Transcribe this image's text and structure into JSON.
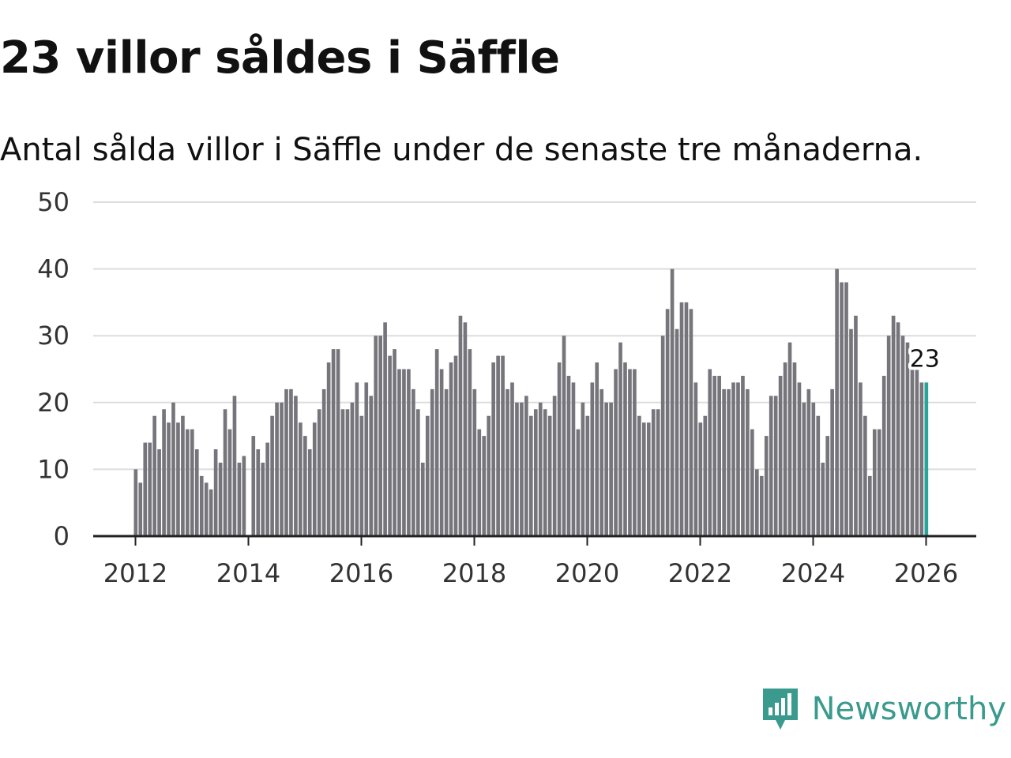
{
  "header": {
    "title": "23 villor såldes i Säffle",
    "subtitle": "Antal sålda villor i Säffle under de senaste tre månaderna."
  },
  "brand": {
    "name": "Newsworthy",
    "color": "#3a9a8e"
  },
  "colors": {
    "bar": "#76757b",
    "highlight": "#2aa39a",
    "grid": "#dddddd",
    "axis": "#222222"
  },
  "chart_data": {
    "type": "bar",
    "title": "23 villor såldes i Säffle",
    "subtitle": "Antal sålda villor i Säffle under de senaste tre månaderna.",
    "xlabel": "",
    "ylabel": "",
    "ylim": [
      0,
      50
    ],
    "yticks": [
      0,
      10,
      20,
      30,
      40,
      50
    ],
    "xticks": [
      "2012",
      "2014",
      "2016",
      "2018",
      "2020",
      "2022",
      "2024",
      "2026"
    ],
    "grid": true,
    "start_year": 2012,
    "start_month": 1,
    "values": [
      10,
      8,
      14,
      14,
      18,
      13,
      19,
      17,
      20,
      17,
      18,
      16,
      16,
      13,
      9,
      8,
      7,
      13,
      11,
      19,
      16,
      21,
      11,
      12,
      0,
      15,
      13,
      11,
      14,
      18,
      20,
      20,
      22,
      22,
      21,
      17,
      15,
      13,
      17,
      19,
      22,
      26,
      28,
      28,
      19,
      19,
      20,
      23,
      18,
      23,
      21,
      30,
      30,
      32,
      27,
      28,
      25,
      25,
      25,
      22,
      19,
      11,
      18,
      22,
      28,
      25,
      22,
      26,
      27,
      33,
      32,
      28,
      22,
      16,
      15,
      18,
      26,
      27,
      27,
      22,
      23,
      20,
      20,
      21,
      18,
      19,
      20,
      19,
      18,
      21,
      26,
      30,
      24,
      23,
      16,
      20,
      18,
      23,
      26,
      22,
      20,
      20,
      25,
      29,
      26,
      25,
      25,
      18,
      17,
      17,
      19,
      19,
      30,
      34,
      40,
      31,
      35,
      35,
      34,
      23,
      17,
      18,
      25,
      24,
      24,
      22,
      22,
      23,
      23,
      24,
      22,
      16,
      10,
      9,
      15,
      21,
      21,
      24,
      26,
      29,
      26,
      23,
      20,
      22,
      20,
      18,
      11,
      15,
      22,
      40,
      38,
      38,
      31,
      33,
      23,
      18,
      9,
      16,
      16,
      24,
      30,
      33,
      32,
      30,
      29,
      26,
      25,
      23,
      23
    ],
    "highlight_last": true,
    "annotation": {
      "label": "23",
      "value": 23
    }
  }
}
